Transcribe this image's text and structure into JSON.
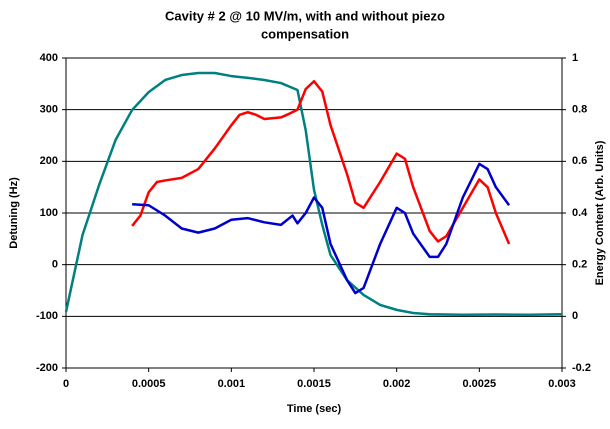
{
  "chart_data": {
    "type": "line",
    "title": [
      "Cavity # 2 @ 10 MV/m, with and without piezo",
      "compensation"
    ],
    "x_label": "Time (sec)",
    "y_label": "Detuning (Hz)",
    "y2_label": "Energy Content (Arb. Units)",
    "xlim": [
      0,
      0.003
    ],
    "xticks": [
      0,
      0.0005,
      0.001,
      0.0015,
      0.002,
      0.0025,
      0.003
    ],
    "ylim": [
      -200,
      400
    ],
    "yticks": [
      400,
      300,
      200,
      100,
      0,
      -100,
      -200
    ],
    "y2lim": [
      -0.2,
      1
    ],
    "y2ticks": [
      1,
      0.8,
      0.6,
      0.4,
      0.2,
      0,
      -0.2
    ],
    "grid": true,
    "series": [
      {
        "color": "#008080",
        "axis": "y2",
        "x": [
          0,
          0.0001,
          0.0002,
          0.0003,
          0.0004,
          0.0005,
          0.0006,
          0.0007,
          0.0008,
          0.0009,
          0.001,
          0.0011,
          0.0012,
          0.0013,
          0.0014,
          0.00145,
          0.0015,
          0.00155,
          0.0016,
          0.0017,
          0.0018,
          0.0019,
          0.002,
          0.0021,
          0.0022,
          0.0024,
          0.0026,
          0.0028,
          0.003
        ],
        "values": [
          0.017,
          0.315,
          0.508,
          0.683,
          0.799,
          0.868,
          0.915,
          0.934,
          0.942,
          0.942,
          0.93,
          0.923,
          0.915,
          0.903,
          0.876,
          0.72,
          0.49,
          0.354,
          0.237,
          0.14,
          0.083,
          0.044,
          0.025,
          0.013,
          0.008,
          0.006,
          0.007,
          0.006,
          0.008
        ]
      },
      {
        "color": "#ff0000",
        "x": [
          0.0004,
          0.00045,
          0.0005,
          0.00055,
          0.0006,
          0.0007,
          0.0008,
          0.0009,
          0.001,
          0.00105,
          0.0011,
          0.00115,
          0.0012,
          0.0013,
          0.00135,
          0.0014,
          0.00145,
          0.0015,
          0.00155,
          0.0016,
          0.0017,
          0.00175,
          0.0018,
          0.0019,
          0.002,
          0.00205,
          0.0021,
          0.0022,
          0.00225,
          0.0023,
          0.0024,
          0.0025,
          0.00255,
          0.0026,
          0.00268
        ],
        "values": [
          75,
          95,
          140,
          160,
          163,
          168,
          185,
          225,
          270,
          290,
          295,
          290,
          282,
          285,
          292,
          300,
          340,
          355,
          335,
          270,
          175,
          120,
          110,
          160,
          215,
          205,
          150,
          65,
          45,
          55,
          110,
          165,
          150,
          100,
          40
        ]
      },
      {
        "color": "#0000cc",
        "x": [
          0.0004,
          0.0005,
          0.0006,
          0.0007,
          0.0008,
          0.0009,
          0.001,
          0.0011,
          0.0012,
          0.0013,
          0.00137,
          0.0014,
          0.00145,
          0.0015,
          0.00155,
          0.0016,
          0.0017,
          0.00175,
          0.0018,
          0.0019,
          0.002,
          0.00205,
          0.0021,
          0.0022,
          0.00225,
          0.0023,
          0.0024,
          0.0025,
          0.00255,
          0.0026,
          0.00268
        ],
        "values": [
          117,
          115,
          95,
          70,
          62,
          70,
          87,
          90,
          82,
          77,
          95,
          80,
          100,
          130,
          110,
          40,
          -30,
          -55,
          -45,
          40,
          110,
          100,
          60,
          15,
          15,
          40,
          130,
          195,
          185,
          150,
          115
        ]
      }
    ]
  }
}
